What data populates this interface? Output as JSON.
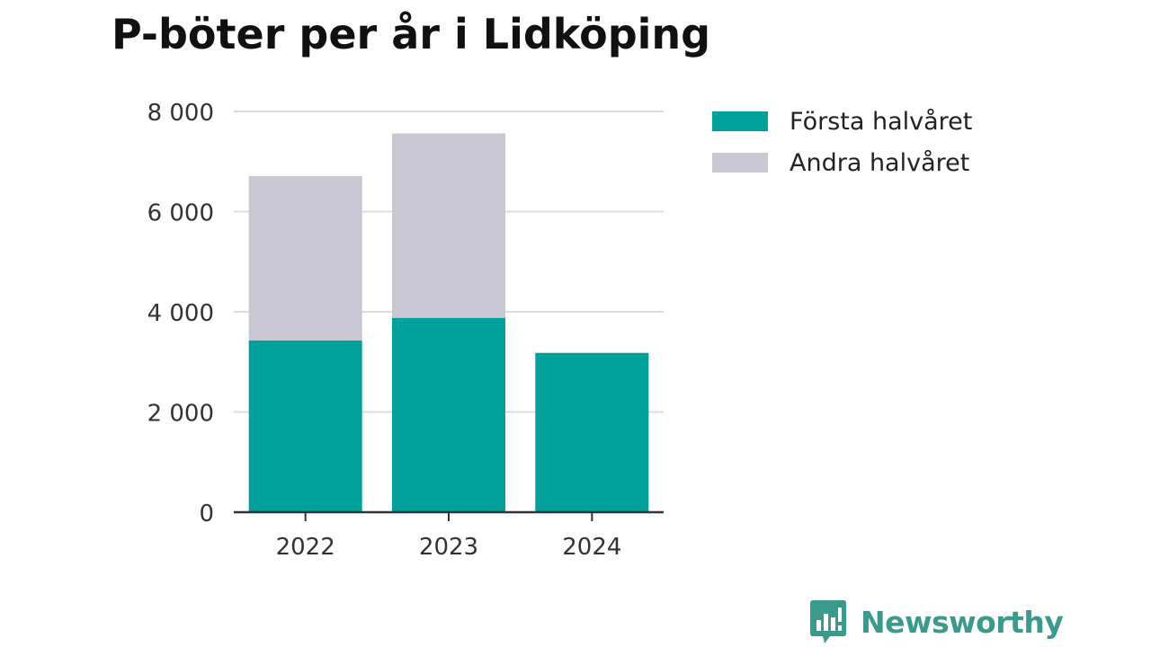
{
  "title": "P-böter per år i Lidköping",
  "chart_data": {
    "type": "bar",
    "stacked": true,
    "title": "P-böter per år i Lidköping",
    "categories": [
      "2022",
      "2023",
      "2024"
    ],
    "series": [
      {
        "name": "Första halvåret",
        "color": "#00a19a",
        "values": [
          3430,
          3880,
          3180
        ]
      },
      {
        "name": "Andra halvåret",
        "color": "#c8c7d2",
        "values": [
          3280,
          3680,
          null
        ]
      }
    ],
    "yticks": [
      "0",
      "2 000",
      "4 000",
      "6 000",
      "8 000"
    ],
    "ylim": [
      0,
      8000
    ],
    "grid": true,
    "legend_position": "right"
  },
  "legend": {
    "items": [
      {
        "label": "Första halvåret",
        "color": "#00a19a"
      },
      {
        "label": "Andra halvåret",
        "color": "#c8c7d2"
      }
    ]
  },
  "logo": {
    "text": "Newsworthy",
    "icon": "newsworthy-chart-icon",
    "color": "#3a9a8c"
  }
}
